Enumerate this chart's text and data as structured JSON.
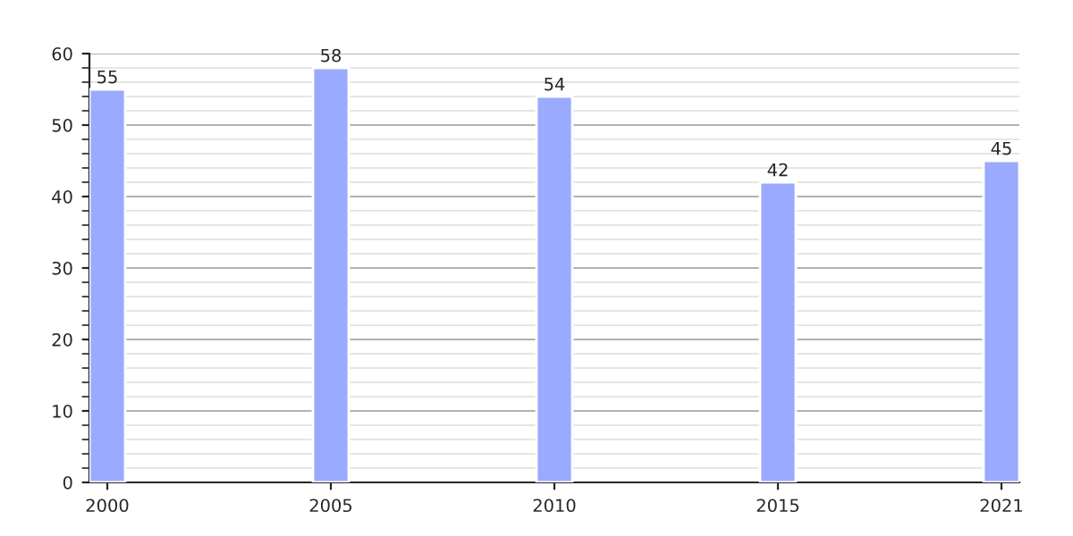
{
  "chart_data": {
    "type": "bar",
    "categories": [
      "2000",
      "2005",
      "2010",
      "2015",
      "2021"
    ],
    "values": [
      55,
      58,
      54,
      42,
      45
    ],
    "color": "#99aaff",
    "ylim": [
      0,
      60
    ],
    "yticks": [
      0,
      10,
      20,
      30,
      40,
      50,
      60
    ],
    "grid": "y",
    "data_labels": true
  }
}
